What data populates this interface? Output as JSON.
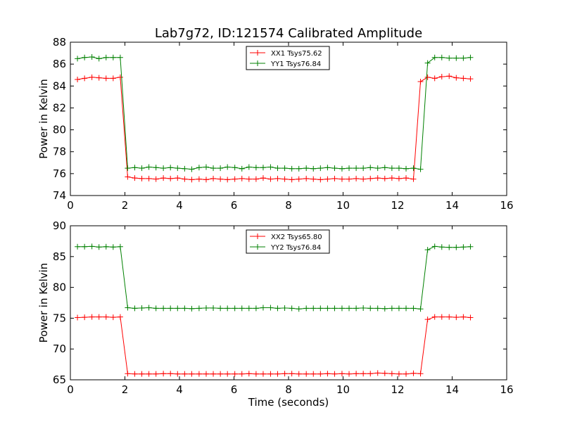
{
  "title": "Lab7g72, ID:121574 Calibrated Amplitude",
  "chart_data": [
    {
      "type": "line",
      "title": "Lab7g72, ID:121574 Calibrated Amplitude",
      "xlabel": "",
      "ylabel": "Power in Kelvin",
      "xlim": [
        0,
        16
      ],
      "ylim": [
        74,
        88
      ],
      "xticks": [
        0,
        2,
        4,
        6,
        8,
        10,
        12,
        14,
        16
      ],
      "yticks": [
        74,
        76,
        78,
        80,
        82,
        84,
        86,
        88
      ],
      "grid": false,
      "legend_position": "top-center",
      "x": [
        0.26,
        0.52,
        0.79,
        1.05,
        1.31,
        1.57,
        1.83,
        2.1,
        2.36,
        2.62,
        2.88,
        3.14,
        3.41,
        3.67,
        3.93,
        4.19,
        4.45,
        4.72,
        4.98,
        5.24,
        5.5,
        5.76,
        6.03,
        6.29,
        6.55,
        6.81,
        7.07,
        7.34,
        7.6,
        7.86,
        8.12,
        8.38,
        8.65,
        8.91,
        9.17,
        9.43,
        9.69,
        9.96,
        10.22,
        10.48,
        10.74,
        11.0,
        11.27,
        11.53,
        11.79,
        12.05,
        12.31,
        12.58,
        12.84,
        13.1,
        13.36,
        13.62,
        13.89,
        14.15,
        14.41,
        14.67
      ],
      "series": [
        {
          "name": "XX1 Tsys75.62",
          "color": "#ff0000",
          "values": [
            84.6,
            84.7,
            84.8,
            84.75,
            84.7,
            84.7,
            84.8,
            75.7,
            75.6,
            75.55,
            75.55,
            75.5,
            75.6,
            75.55,
            75.6,
            75.5,
            75.45,
            75.5,
            75.45,
            75.55,
            75.5,
            75.45,
            75.5,
            75.55,
            75.5,
            75.5,
            75.6,
            75.5,
            75.55,
            75.5,
            75.45,
            75.5,
            75.55,
            75.5,
            75.45,
            75.5,
            75.55,
            75.5,
            75.5,
            75.55,
            75.5,
            75.55,
            75.6,
            75.55,
            75.6,
            75.55,
            75.6,
            75.5,
            84.4,
            84.8,
            84.7,
            84.85,
            84.9,
            84.75,
            84.7,
            84.65
          ]
        },
        {
          "name": "YY1 Tsys76.84",
          "color": "#008000",
          "values": [
            86.5,
            86.6,
            86.65,
            86.5,
            86.6,
            86.6,
            86.6,
            76.5,
            76.55,
            76.5,
            76.6,
            76.55,
            76.5,
            76.55,
            76.5,
            76.45,
            76.4,
            76.55,
            76.6,
            76.5,
            76.5,
            76.6,
            76.55,
            76.45,
            76.6,
            76.55,
            76.55,
            76.6,
            76.5,
            76.5,
            76.45,
            76.45,
            76.5,
            76.45,
            76.5,
            76.55,
            76.5,
            76.45,
            76.5,
            76.5,
            76.5,
            76.55,
            76.5,
            76.55,
            76.5,
            76.5,
            76.45,
            76.5,
            76.4,
            86.1,
            86.6,
            86.6,
            86.55,
            86.55,
            86.55,
            86.6
          ]
        }
      ]
    },
    {
      "type": "line",
      "title": "",
      "xlabel": "Time (seconds)",
      "ylabel": "Power in Kelvin",
      "xlim": [
        0,
        16
      ],
      "ylim": [
        65,
        90
      ],
      "xticks": [
        0,
        2,
        4,
        6,
        8,
        10,
        12,
        14,
        16
      ],
      "yticks": [
        65,
        70,
        75,
        80,
        85,
        90
      ],
      "grid": false,
      "legend_position": "top-center",
      "x": [
        0.26,
        0.52,
        0.79,
        1.05,
        1.31,
        1.57,
        1.83,
        2.1,
        2.36,
        2.62,
        2.88,
        3.14,
        3.41,
        3.67,
        3.93,
        4.19,
        4.45,
        4.72,
        4.98,
        5.24,
        5.5,
        5.76,
        6.03,
        6.29,
        6.55,
        6.81,
        7.07,
        7.34,
        7.6,
        7.86,
        8.12,
        8.38,
        8.65,
        8.91,
        9.17,
        9.43,
        9.69,
        9.96,
        10.22,
        10.48,
        10.74,
        11.0,
        11.27,
        11.53,
        11.79,
        12.05,
        12.31,
        12.58,
        12.84,
        13.1,
        13.36,
        13.62,
        13.89,
        14.15,
        14.41,
        14.67
      ],
      "series": [
        {
          "name": "XX2 Tsys65.80",
          "color": "#ff0000",
          "values": [
            75.1,
            75.15,
            75.2,
            75.2,
            75.2,
            75.15,
            75.2,
            66.0,
            65.95,
            65.95,
            65.95,
            65.95,
            66.0,
            66.0,
            65.95,
            65.95,
            65.95,
            65.95,
            65.95,
            65.95,
            65.95,
            65.95,
            65.95,
            65.95,
            66.0,
            65.95,
            65.95,
            65.95,
            65.95,
            66.0,
            66.0,
            65.95,
            65.95,
            65.95,
            65.95,
            66.0,
            65.95,
            66.0,
            65.95,
            66.0,
            66.0,
            66.0,
            66.1,
            66.05,
            66.0,
            65.95,
            65.95,
            66.05,
            66.0,
            74.8,
            75.2,
            75.2,
            75.2,
            75.15,
            75.2,
            75.1
          ]
        },
        {
          "name": "YY2 Tsys76.84",
          "color": "#008000",
          "values": [
            86.6,
            86.6,
            86.65,
            86.55,
            86.6,
            86.55,
            86.6,
            76.7,
            76.6,
            76.65,
            76.7,
            76.6,
            76.6,
            76.6,
            76.6,
            76.6,
            76.55,
            76.6,
            76.65,
            76.65,
            76.6,
            76.6,
            76.6,
            76.6,
            76.6,
            76.6,
            76.7,
            76.7,
            76.6,
            76.65,
            76.6,
            76.5,
            76.6,
            76.6,
            76.6,
            76.6,
            76.6,
            76.6,
            76.6,
            76.6,
            76.65,
            76.6,
            76.6,
            76.55,
            76.6,
            76.6,
            76.6,
            76.6,
            76.5,
            86.1,
            86.65,
            86.55,
            86.5,
            86.5,
            86.55,
            86.6
          ]
        }
      ]
    }
  ]
}
